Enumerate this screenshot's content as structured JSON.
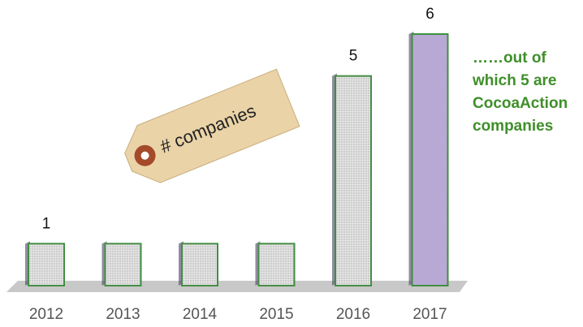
{
  "chart_data": {
    "type": "bar",
    "categories": [
      "2012",
      "2013",
      "2014",
      "2015",
      "2016",
      "2017"
    ],
    "values": [
      1,
      1,
      1,
      1,
      5,
      6
    ],
    "value_labels": [
      "1",
      null,
      null,
      null,
      "5",
      "6"
    ],
    "colors": [
      "#e4e4e4",
      "#e4e4e4",
      "#e4e4e4",
      "#e4e4e4",
      "#e4e4e4",
      "#b9a9d6"
    ],
    "edge_color": "#3f8f3f",
    "tag_text": "# companies",
    "annotation": [
      "……out of",
      "which 5 are",
      "CocoaAction",
      "companies"
    ]
  }
}
